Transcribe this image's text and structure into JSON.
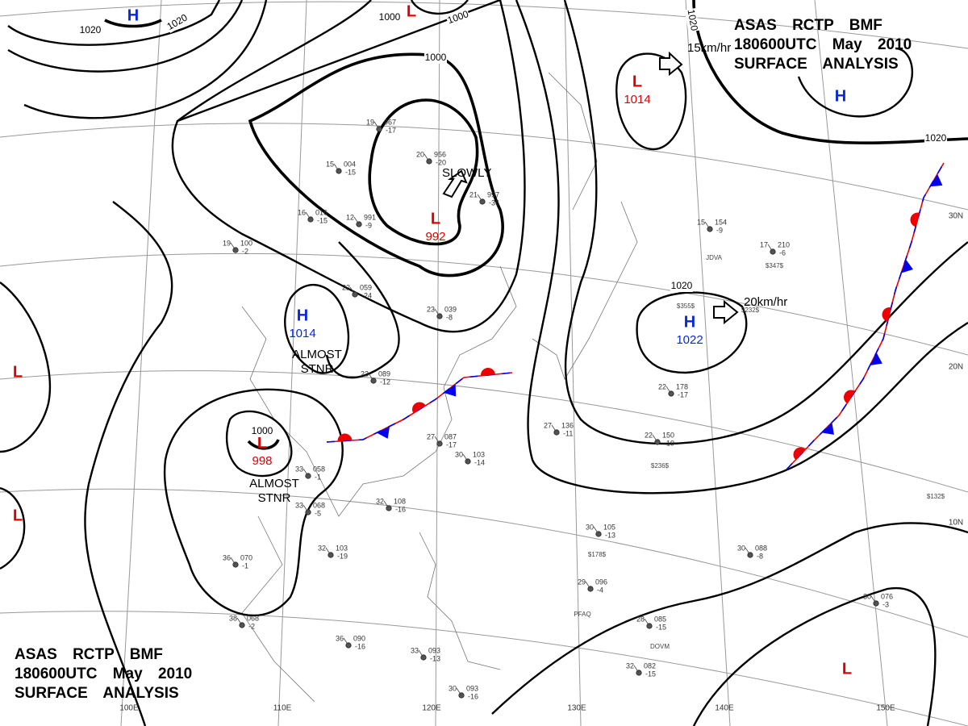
{
  "header": {
    "station": "ASAS RCTP BMF",
    "time": "180600UTC May 2010",
    "product": "SURFACE ANALYSIS"
  },
  "pressure_systems": [
    {
      "type": "H"
    },
    {
      "type": "L"
    },
    {
      "type": "L",
      "pressure": "1014"
    },
    {
      "type": "H"
    },
    {
      "type": "L",
      "pressure": "992"
    },
    {
      "type": "H",
      "pressure": "1014"
    },
    {
      "type": "L",
      "pressure": "998"
    },
    {
      "type": "H",
      "pressure": "1022"
    },
    {
      "type": "L"
    },
    {
      "type": "L"
    },
    {
      "type": "L"
    }
  ],
  "isobar_labels": [
    "1020",
    "1020",
    "1000",
    "1000",
    "1000",
    "1020",
    "1020",
    "1020",
    "1000"
  ],
  "annotations": [
    "SLOWLY",
    "15km/hr",
    "20km/hr"
  ],
  "stationary_notes": [
    [
      "ALMOST",
      "STNR"
    ],
    [
      "ALMOST",
      "STNR"
    ]
  ],
  "latitude_labels": [
    "30N",
    "20N",
    "10N"
  ],
  "longitude_labels": [
    "100E",
    "110E",
    "120E",
    "130E",
    "140E",
    "150E"
  ],
  "stations": [
    {
      "temp": "19",
      "pressure": "967",
      "tendency": "-17"
    },
    {
      "temp": "20",
      "pressure": "956",
      "tendency": "-20"
    },
    {
      "temp": "21",
      "pressure": "997",
      "tendency": "-36"
    },
    {
      "temp": "15",
      "pressure": "004",
      "tendency": "-15"
    },
    {
      "temp": "16",
      "pressure": "016",
      "tendency": "-15"
    },
    {
      "temp": "12",
      "pressure": "991",
      "tendency": "-9"
    },
    {
      "temp": "22",
      "pressure": "059",
      "tendency": "-24"
    },
    {
      "temp": "23",
      "pressure": "089",
      "tendency": "-12"
    },
    {
      "temp": "27",
      "pressure": "087",
      "tendency": "-17"
    },
    {
      "temp": "30",
      "pressure": "103",
      "tendency": "-14"
    },
    {
      "temp": "32",
      "pressure": "108",
      "tendency": "-16"
    },
    {
      "temp": "27",
      "pressure": "136",
      "tendency": "-11"
    },
    {
      "temp": "33",
      "pressure": "058",
      "tendency": "-1"
    },
    {
      "temp": "33",
      "pressure": "068",
      "tendency": "-5"
    },
    {
      "temp": "32",
      "pressure": "103",
      "tendency": "-19"
    },
    {
      "temp": "36",
      "pressure": "070",
      "tendency": "-1"
    },
    {
      "temp": "38",
      "pressure": "068",
      "tendency": "-2"
    },
    {
      "temp": "36",
      "pressure": "090",
      "tendency": "-16"
    },
    {
      "temp": "33",
      "pressure": "093",
      "tendency": "-13"
    },
    {
      "temp": "30",
      "pressure": "093",
      "tendency": "-16"
    },
    {
      "temp": "30",
      "pressure": "105",
      "tendency": "-13"
    },
    {
      "temp": "30",
      "pressure": "088",
      "tendency": "-8"
    },
    {
      "temp": "28",
      "pressure": "085",
      "tendency": "-15"
    },
    {
      "temp": "32",
      "pressure": "082",
      "tendency": "-15"
    },
    {
      "temp": "22",
      "pressure": "150",
      "tendency": "-19"
    },
    {
      "temp": "22",
      "pressure": "178",
      "tendency": "-17"
    },
    {
      "temp": "29",
      "pressure": "096",
      "tendency": "-4"
    },
    {
      "temp": "15",
      "pressure": "154",
      "tendency": "-9"
    },
    {
      "temp": "17",
      "pressure": "210",
      "tendency": "-6"
    },
    {
      "temp": "30",
      "pressure": "076",
      "tendency": "-3"
    },
    {
      "temp": "19",
      "pressure": "100",
      "tendency": "-2"
    },
    {
      "temp": "23",
      "pressure": "039",
      "tendency": "-8"
    }
  ],
  "station_codes": [
    "$355$",
    "$347$",
    "$232$",
    "$236$",
    "$178$",
    "$132$",
    "PFAQ",
    "JDVA",
    "DOVM"
  ]
}
